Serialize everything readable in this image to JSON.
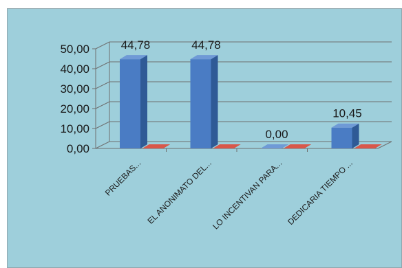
{
  "chart_data": {
    "type": "bar",
    "categories": [
      "PRUEBAS...",
      "EL ANONIMATO DEL...",
      "LO INCENTIVAN PARA...",
      "DEDICARIA TIEMPO ..."
    ],
    "series": [
      {
        "values": [
          44.78,
          44.78,
          0.0,
          10.45
        ]
      },
      {
        "values": [
          0,
          0,
          0,
          0
        ]
      }
    ],
    "data_labels": [
      "44,78",
      "44,78",
      "0,00",
      "10,45"
    ],
    "y_tick_labels": [
      "0,00",
      "10,00",
      "20,00",
      "30,00",
      "40,00",
      "50,00"
    ],
    "ylim": [
      0,
      50
    ],
    "grid": true,
    "legend": "none",
    "style": "3d-column",
    "colors": {
      "background": "#9ecfdb",
      "series1": "#4a7cc4",
      "series1_side": "#2f5a96",
      "series1_top": "#6f9ad6",
      "series2": "#c0392b",
      "gridline": "#6f6f6f"
    }
  }
}
